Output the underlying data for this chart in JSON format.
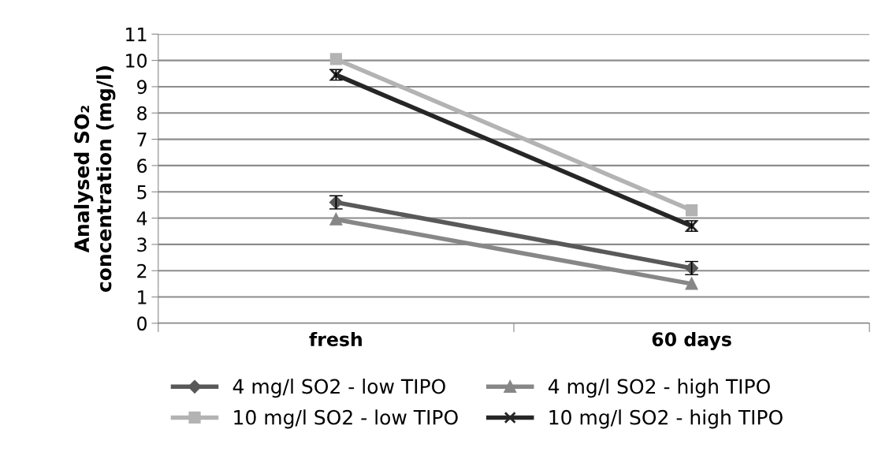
{
  "chart_data": {
    "type": "line",
    "ylabel": "Analysed SO₂\nconcentration (mg/l)",
    "categories": [
      "fresh",
      "60 days"
    ],
    "ylim": [
      0,
      11
    ],
    "yticks": [
      0,
      1,
      2,
      3,
      4,
      5,
      6,
      7,
      8,
      9,
      10,
      11
    ],
    "grid": "y",
    "legend": "bottom",
    "series": [
      {
        "name": "4 mg/l SO2 - low TIPO",
        "color": "#595959",
        "marker": "diamond",
        "values": [
          4.6,
          2.1
        ],
        "errors": [
          0.25,
          0.25
        ]
      },
      {
        "name": "10 mg/l SO2 - low TIPO",
        "color": "#b3b3b3",
        "marker": "square",
        "values": [
          10.05,
          4.3
        ]
      },
      {
        "name": "4 mg/l SO2 - high TIPO",
        "color": "#878787",
        "marker": "triangle",
        "values": [
          3.95,
          1.5
        ]
      },
      {
        "name": "10 mg/l SO2 - high TIPO",
        "color": "#262626",
        "marker": "cross",
        "values": [
          9.45,
          3.7
        ],
        "errors": [
          0.2,
          0.2
        ]
      }
    ]
  }
}
